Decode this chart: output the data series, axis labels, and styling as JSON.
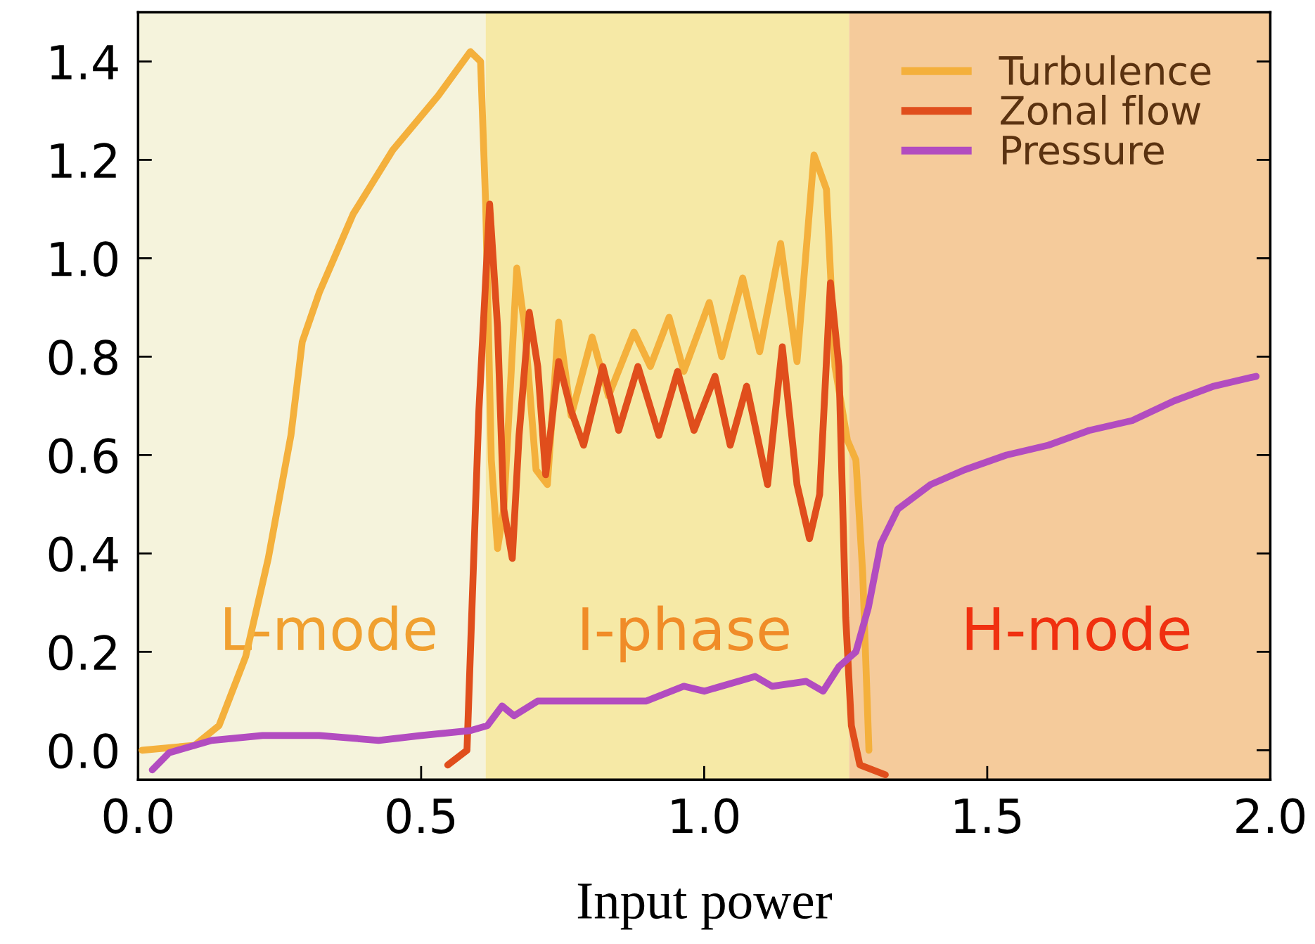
{
  "chart_data": {
    "type": "line",
    "xlabel": "Input power",
    "xlim": [
      0,
      2.0
    ],
    "ylim": [
      -0.06,
      1.5
    ],
    "xticks": [
      {
        "value": 0,
        "label": "0.0"
      },
      0.5,
      {
        "value": 1,
        "label": "1.0"
      },
      1.5,
      {
        "value": 2,
        "label": "2.0"
      }
    ],
    "yticks": [
      {
        "value": 0,
        "label": "0.0"
      },
      0.2,
      0.4,
      0.6,
      0.8,
      {
        "value": 1,
        "label": "1.0"
      },
      1.2,
      1.4
    ],
    "grid": false,
    "legend": "top right",
    "marker": "none",
    "line_style": "solid",
    "bands": [
      {
        "axis": "x",
        "from": 0,
        "to": 0.614,
        "label": "L-mode",
        "color": "#f5f3dc"
      },
      {
        "axis": "x",
        "from": 0.614,
        "to": 1.256,
        "label": "I-phase",
        "color": "#f6e9a6"
      },
      {
        "axis": "x",
        "from": 1.256,
        "to": 2.0,
        "label": "H-mode",
        "color": "#f5cb9b"
      }
    ],
    "series": [
      {
        "name": "Turbulence",
        "color": "#f4b03c",
        "x": [
          0.007,
          0.1,
          0.143,
          0.19,
          0.23,
          0.27,
          0.29,
          0.32,
          0.38,
          0.45,
          0.53,
          0.587,
          0.605,
          0.614,
          0.624,
          0.635,
          0.646,
          0.669,
          0.683,
          0.703,
          0.723,
          0.743,
          0.765,
          0.802,
          0.831,
          0.876,
          0.905,
          0.938,
          0.964,
          1.009,
          1.031,
          1.068,
          1.098,
          1.135,
          1.164,
          1.194,
          1.216,
          1.231,
          1.253,
          1.268,
          1.28,
          1.291
        ],
        "values": [
          0.0,
          0.01,
          0.05,
          0.19,
          0.39,
          0.64,
          0.83,
          0.93,
          1.09,
          1.22,
          1.33,
          1.42,
          1.4,
          1.11,
          0.59,
          0.41,
          0.49,
          0.98,
          0.86,
          0.57,
          0.54,
          0.87,
          0.68,
          0.84,
          0.72,
          0.85,
          0.78,
          0.88,
          0.77,
          0.91,
          0.8,
          0.96,
          0.81,
          1.03,
          0.79,
          1.21,
          1.14,
          0.78,
          0.63,
          0.59,
          0.36,
          0.0
        ]
      },
      {
        "name": "Zonal flow",
        "color": "#e04e1c",
        "x": [
          0.547,
          0.581,
          0.602,
          0.621,
          0.635,
          0.646,
          0.661,
          0.673,
          0.691,
          0.706,
          0.72,
          0.743,
          0.765,
          0.787,
          0.821,
          0.849,
          0.883,
          0.92,
          0.953,
          0.982,
          1.019,
          1.046,
          1.075,
          1.112,
          1.138,
          1.164,
          1.186,
          1.204,
          1.223,
          1.238,
          1.25,
          1.26,
          1.275,
          1.32
        ],
        "values": [
          -0.03,
          0.0,
          0.69,
          1.11,
          0.86,
          0.49,
          0.39,
          0.64,
          0.89,
          0.78,
          0.56,
          0.79,
          0.69,
          0.62,
          0.78,
          0.65,
          0.78,
          0.64,
          0.77,
          0.65,
          0.76,
          0.62,
          0.74,
          0.54,
          0.82,
          0.54,
          0.43,
          0.52,
          0.95,
          0.78,
          0.27,
          0.05,
          -0.03,
          -0.05
        ]
      },
      {
        "name": "Pressure",
        "color": "#b24cc0",
        "x": [
          0.025,
          0.055,
          0.13,
          0.22,
          0.32,
          0.425,
          0.5,
          0.587,
          0.617,
          0.643,
          0.664,
          0.706,
          0.794,
          0.898,
          0.964,
          1.0,
          1.09,
          1.12,
          1.18,
          1.21,
          1.238,
          1.268,
          1.29,
          1.312,
          1.342,
          1.4,
          1.46,
          1.534,
          1.608,
          1.68,
          1.756,
          1.83,
          1.9,
          1.975
        ],
        "values": [
          -0.04,
          -0.005,
          0.02,
          0.03,
          0.03,
          0.02,
          0.03,
          0.04,
          0.05,
          0.09,
          0.07,
          0.1,
          0.1,
          0.1,
          0.13,
          0.12,
          0.15,
          0.13,
          0.14,
          0.12,
          0.17,
          0.2,
          0.29,
          0.42,
          0.49,
          0.54,
          0.57,
          0.6,
          0.62,
          0.65,
          0.67,
          0.71,
          0.74,
          0.76
        ]
      }
    ]
  }
}
